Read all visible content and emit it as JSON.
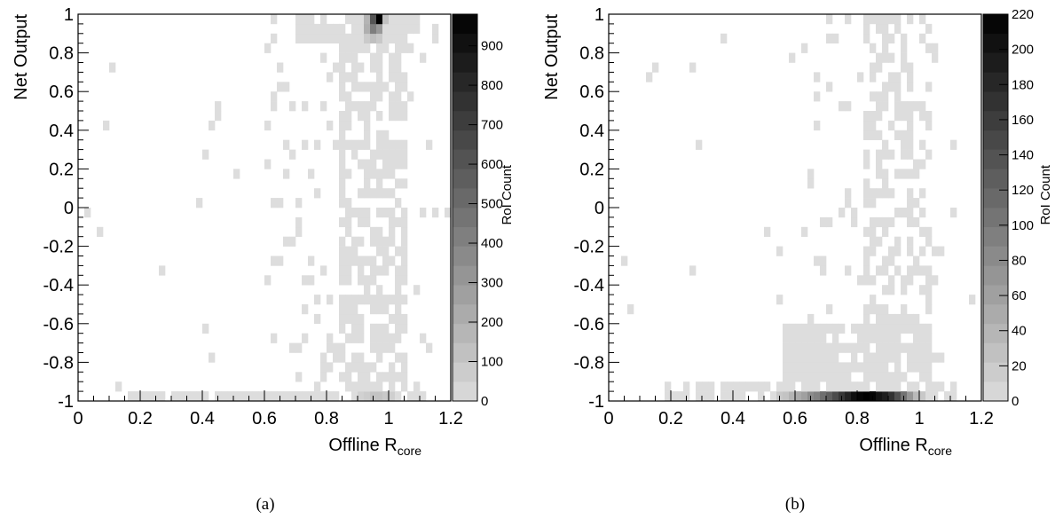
{
  "chart_data": [
    {
      "type": "heatmap",
      "caption": "(a)",
      "xlabel_main": "Offline R",
      "xlabel_sub": "core",
      "ylabel": "Net Output",
      "zlabel": "RoI Count",
      "xlim": [
        0,
        1.2
      ],
      "ylim": [
        -1,
        1
      ],
      "zlim": [
        0,
        980
      ],
      "x_ticks": [
        "0",
        "0.2",
        "0.4",
        "0.6",
        "0.8",
        "1",
        "1.2"
      ],
      "y_ticks": [
        "-1",
        "-0.8",
        "-0.6",
        "-0.4",
        "-0.2",
        "0",
        "0.2",
        "0.4",
        "0.6",
        "0.8",
        "1"
      ],
      "z_ticks": [
        "0",
        "100",
        "200",
        "300",
        "400",
        "500",
        "600",
        "700",
        "800",
        "900"
      ],
      "bins_x": 60,
      "bins_y": 40,
      "peaks": [
        {
          "x": 0.97,
          "y": 0.98,
          "value": 980
        },
        {
          "x": 0.95,
          "y": 0.98,
          "value": 600
        },
        {
          "x": 0.95,
          "y": 0.93,
          "value": 420
        },
        {
          "x": 0.97,
          "y": 0.93,
          "value": 300
        },
        {
          "x": 0.93,
          "y": 0.93,
          "value": 200
        },
        {
          "x": 0.93,
          "y": 0.98,
          "value": 180
        },
        {
          "x": 0.95,
          "y": 0.88,
          "value": 130
        },
        {
          "x": 0.97,
          "y": 0.88,
          "value": 90
        },
        {
          "x": 0.99,
          "y": 0.98,
          "value": 120
        },
        {
          "x": 0.93,
          "y": 0.88,
          "value": 80
        },
        {
          "x": 0.95,
          "y": -0.98,
          "value": 110
        },
        {
          "x": 0.97,
          "y": -0.98,
          "value": 110
        },
        {
          "x": 0.99,
          "y": -0.98,
          "value": 85
        },
        {
          "x": 0.93,
          "y": -0.98,
          "value": 70
        },
        {
          "x": 1.01,
          "y": -0.98,
          "value": 60
        },
        {
          "x": 0.91,
          "y": -0.98,
          "value": 50
        }
      ]
    },
    {
      "type": "heatmap",
      "caption": "(b)",
      "xlabel_main": "Offline R",
      "xlabel_sub": "core",
      "ylabel": "Net Output",
      "zlabel": "RoI Count",
      "xlim": [
        0,
        1.2
      ],
      "ylim": [
        -1,
        1
      ],
      "zlim": [
        0,
        220
      ],
      "x_ticks": [
        "0",
        "0.2",
        "0.4",
        "0.6",
        "0.8",
        "1",
        "1.2"
      ],
      "y_ticks": [
        "-1",
        "-0.8",
        "-0.6",
        "-0.4",
        "-0.2",
        "0",
        "0.2",
        "0.4",
        "0.6",
        "0.8",
        "1"
      ],
      "z_ticks": [
        "0",
        "20",
        "40",
        "60",
        "80",
        "100",
        "120",
        "140",
        "160",
        "180",
        "200",
        "220"
      ],
      "bins_x": 60,
      "bins_y": 40,
      "peaks": [
        {
          "x": 0.79,
          "y": -0.98,
          "value": 205
        },
        {
          "x": 0.81,
          "y": -0.98,
          "value": 215
        },
        {
          "x": 0.83,
          "y": -0.98,
          "value": 220
        },
        {
          "x": 0.85,
          "y": -0.98,
          "value": 215
        },
        {
          "x": 0.87,
          "y": -0.98,
          "value": 200
        },
        {
          "x": 0.89,
          "y": -0.98,
          "value": 190
        },
        {
          "x": 0.77,
          "y": -0.98,
          "value": 185
        },
        {
          "x": 0.75,
          "y": -0.98,
          "value": 165
        },
        {
          "x": 0.91,
          "y": -0.98,
          "value": 170
        },
        {
          "x": 0.73,
          "y": -0.98,
          "value": 145
        },
        {
          "x": 0.93,
          "y": -0.98,
          "value": 140
        },
        {
          "x": 0.71,
          "y": -0.98,
          "value": 125
        },
        {
          "x": 0.69,
          "y": -0.98,
          "value": 110
        },
        {
          "x": 0.95,
          "y": -0.98,
          "value": 105
        },
        {
          "x": 0.67,
          "y": -0.98,
          "value": 90
        },
        {
          "x": 0.65,
          "y": -0.98,
          "value": 80
        },
        {
          "x": 0.97,
          "y": -0.98,
          "value": 70
        },
        {
          "x": 0.63,
          "y": -0.98,
          "value": 60
        },
        {
          "x": 0.61,
          "y": -0.98,
          "value": 50
        },
        {
          "x": 0.59,
          "y": -0.98,
          "value": 40
        },
        {
          "x": 0.99,
          "y": -0.98,
          "value": 35
        },
        {
          "x": 0.57,
          "y": -0.98,
          "value": 25
        },
        {
          "x": 0.55,
          "y": -0.98,
          "value": 20
        },
        {
          "x": 1.01,
          "y": -0.98,
          "value": 20
        }
      ]
    }
  ]
}
